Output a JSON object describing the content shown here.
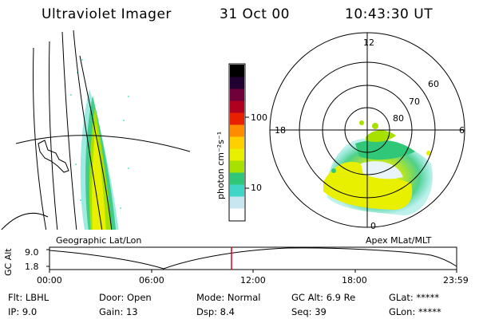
{
  "header": {
    "instrument": "Ultraviolet Imager",
    "date": "31 Oct 00",
    "time": "10:43:30 UT"
  },
  "colorbar": {
    "unit_label": "photon cm⁻²s⁻¹",
    "ticks": [
      "100",
      "10"
    ],
    "colors": [
      "#ffffff",
      "#c8e6f0",
      "#3fd6c8",
      "#30c878",
      "#a8e000",
      "#e8f000",
      "#ffd000",
      "#ff8c00",
      "#e82000",
      "#b00020",
      "#70003a",
      "#200030",
      "#000000"
    ]
  },
  "geo_panel": {
    "label": "Geographic Lat/Lon"
  },
  "polar_panel": {
    "label": "Apex MLat/MLT",
    "mlt_labels": [
      "12",
      "18",
      "6",
      "0"
    ],
    "mlat_labels": [
      "60",
      "70",
      "80"
    ]
  },
  "altitude_plot": {
    "ylabel": "GC Alt",
    "ytick_labels": [
      "9.0",
      "1.8"
    ],
    "xtick_labels": [
      "00:00",
      "06:00",
      "12:00",
      "18:00",
      "23:59"
    ],
    "current_time_fraction": 0.447
  },
  "status": {
    "filter": "Flt: LBHL",
    "ip": "IP:  9.0",
    "door": "Door: Open",
    "gain": "Gain: 13",
    "mode": "Mode: Normal",
    "dsp": "Dsp:    8.4",
    "gc_alt": "GC Alt: 6.9 Re",
    "seq": "Seq: 39",
    "glat": "GLat: *****",
    "glon": "GLon: *****"
  }
}
